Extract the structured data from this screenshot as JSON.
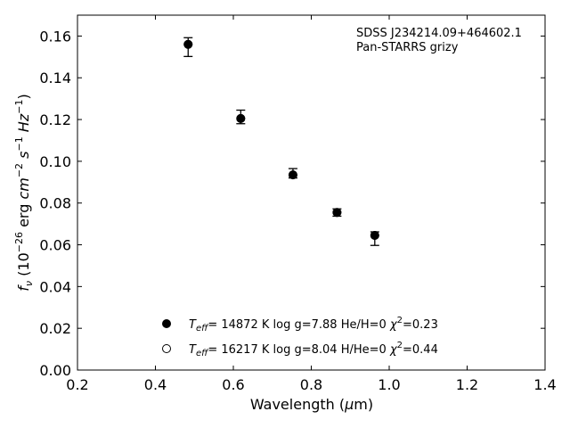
{
  "chart_data": {
    "type": "scatter",
    "title": "",
    "xlabel": "Wavelength (μm)",
    "ylabel": "f_ν (10^-26 erg cm^-2 s^-1 Hz^-1)",
    "xlim": [
      0.2,
      1.4
    ],
    "ylim": [
      0.0,
      0.17
    ],
    "x_ticks": [
      0.2,
      0.4,
      0.6,
      0.8,
      1.0,
      1.2,
      1.4
    ],
    "x_tick_labels": [
      "0.2",
      "0.4",
      "0.6",
      "0.8",
      "1.0",
      "1.2",
      "1.4"
    ],
    "y_ticks": [
      0.0,
      0.02,
      0.04,
      0.06,
      0.08,
      0.1,
      0.12,
      0.14,
      0.16
    ],
    "y_tick_labels": [
      "0.00",
      "0.02",
      "0.04",
      "0.06",
      "0.08",
      "0.10",
      "0.12",
      "0.14",
      "0.16"
    ],
    "grid": false,
    "annotation": [
      "SDSS J234214.09+464602.1",
      "Pan-STARRS grizy"
    ],
    "observed": {
      "x": [
        0.484,
        0.619,
        0.753,
        0.866,
        0.963
      ],
      "y": [
        0.1552,
        0.121,
        0.094,
        0.0757,
        0.0642
      ],
      "err_low": [
        0.005,
        0.003,
        0.002,
        0.002,
        0.0045
      ],
      "err_high": [
        0.004,
        0.0035,
        0.0025,
        0.0015,
        0.002
      ]
    },
    "model_filled": {
      "x": [
        0.484,
        0.619,
        0.753,
        0.866,
        0.963
      ],
      "y": [
        0.156,
        0.1205,
        0.0935,
        0.0755,
        0.0645
      ]
    },
    "model_open": {
      "x": [
        0.484,
        0.619,
        0.753,
        0.866,
        0.963
      ],
      "y": [
        0.156,
        0.1205,
        0.0935,
        0.0755,
        0.0645
      ]
    },
    "legend": {
      "placement": "lower-left",
      "entries": [
        {
          "marker": "filled",
          "teff": "14872 K",
          "logg": "log g=7.88",
          "comp": "He/H=0",
          "chi2": "=0.23"
        },
        {
          "marker": "open",
          "teff": "16217 K",
          "logg": "log g=8.04",
          "comp": "H/He=0",
          "chi2": "=0.44"
        }
      ]
    }
  }
}
